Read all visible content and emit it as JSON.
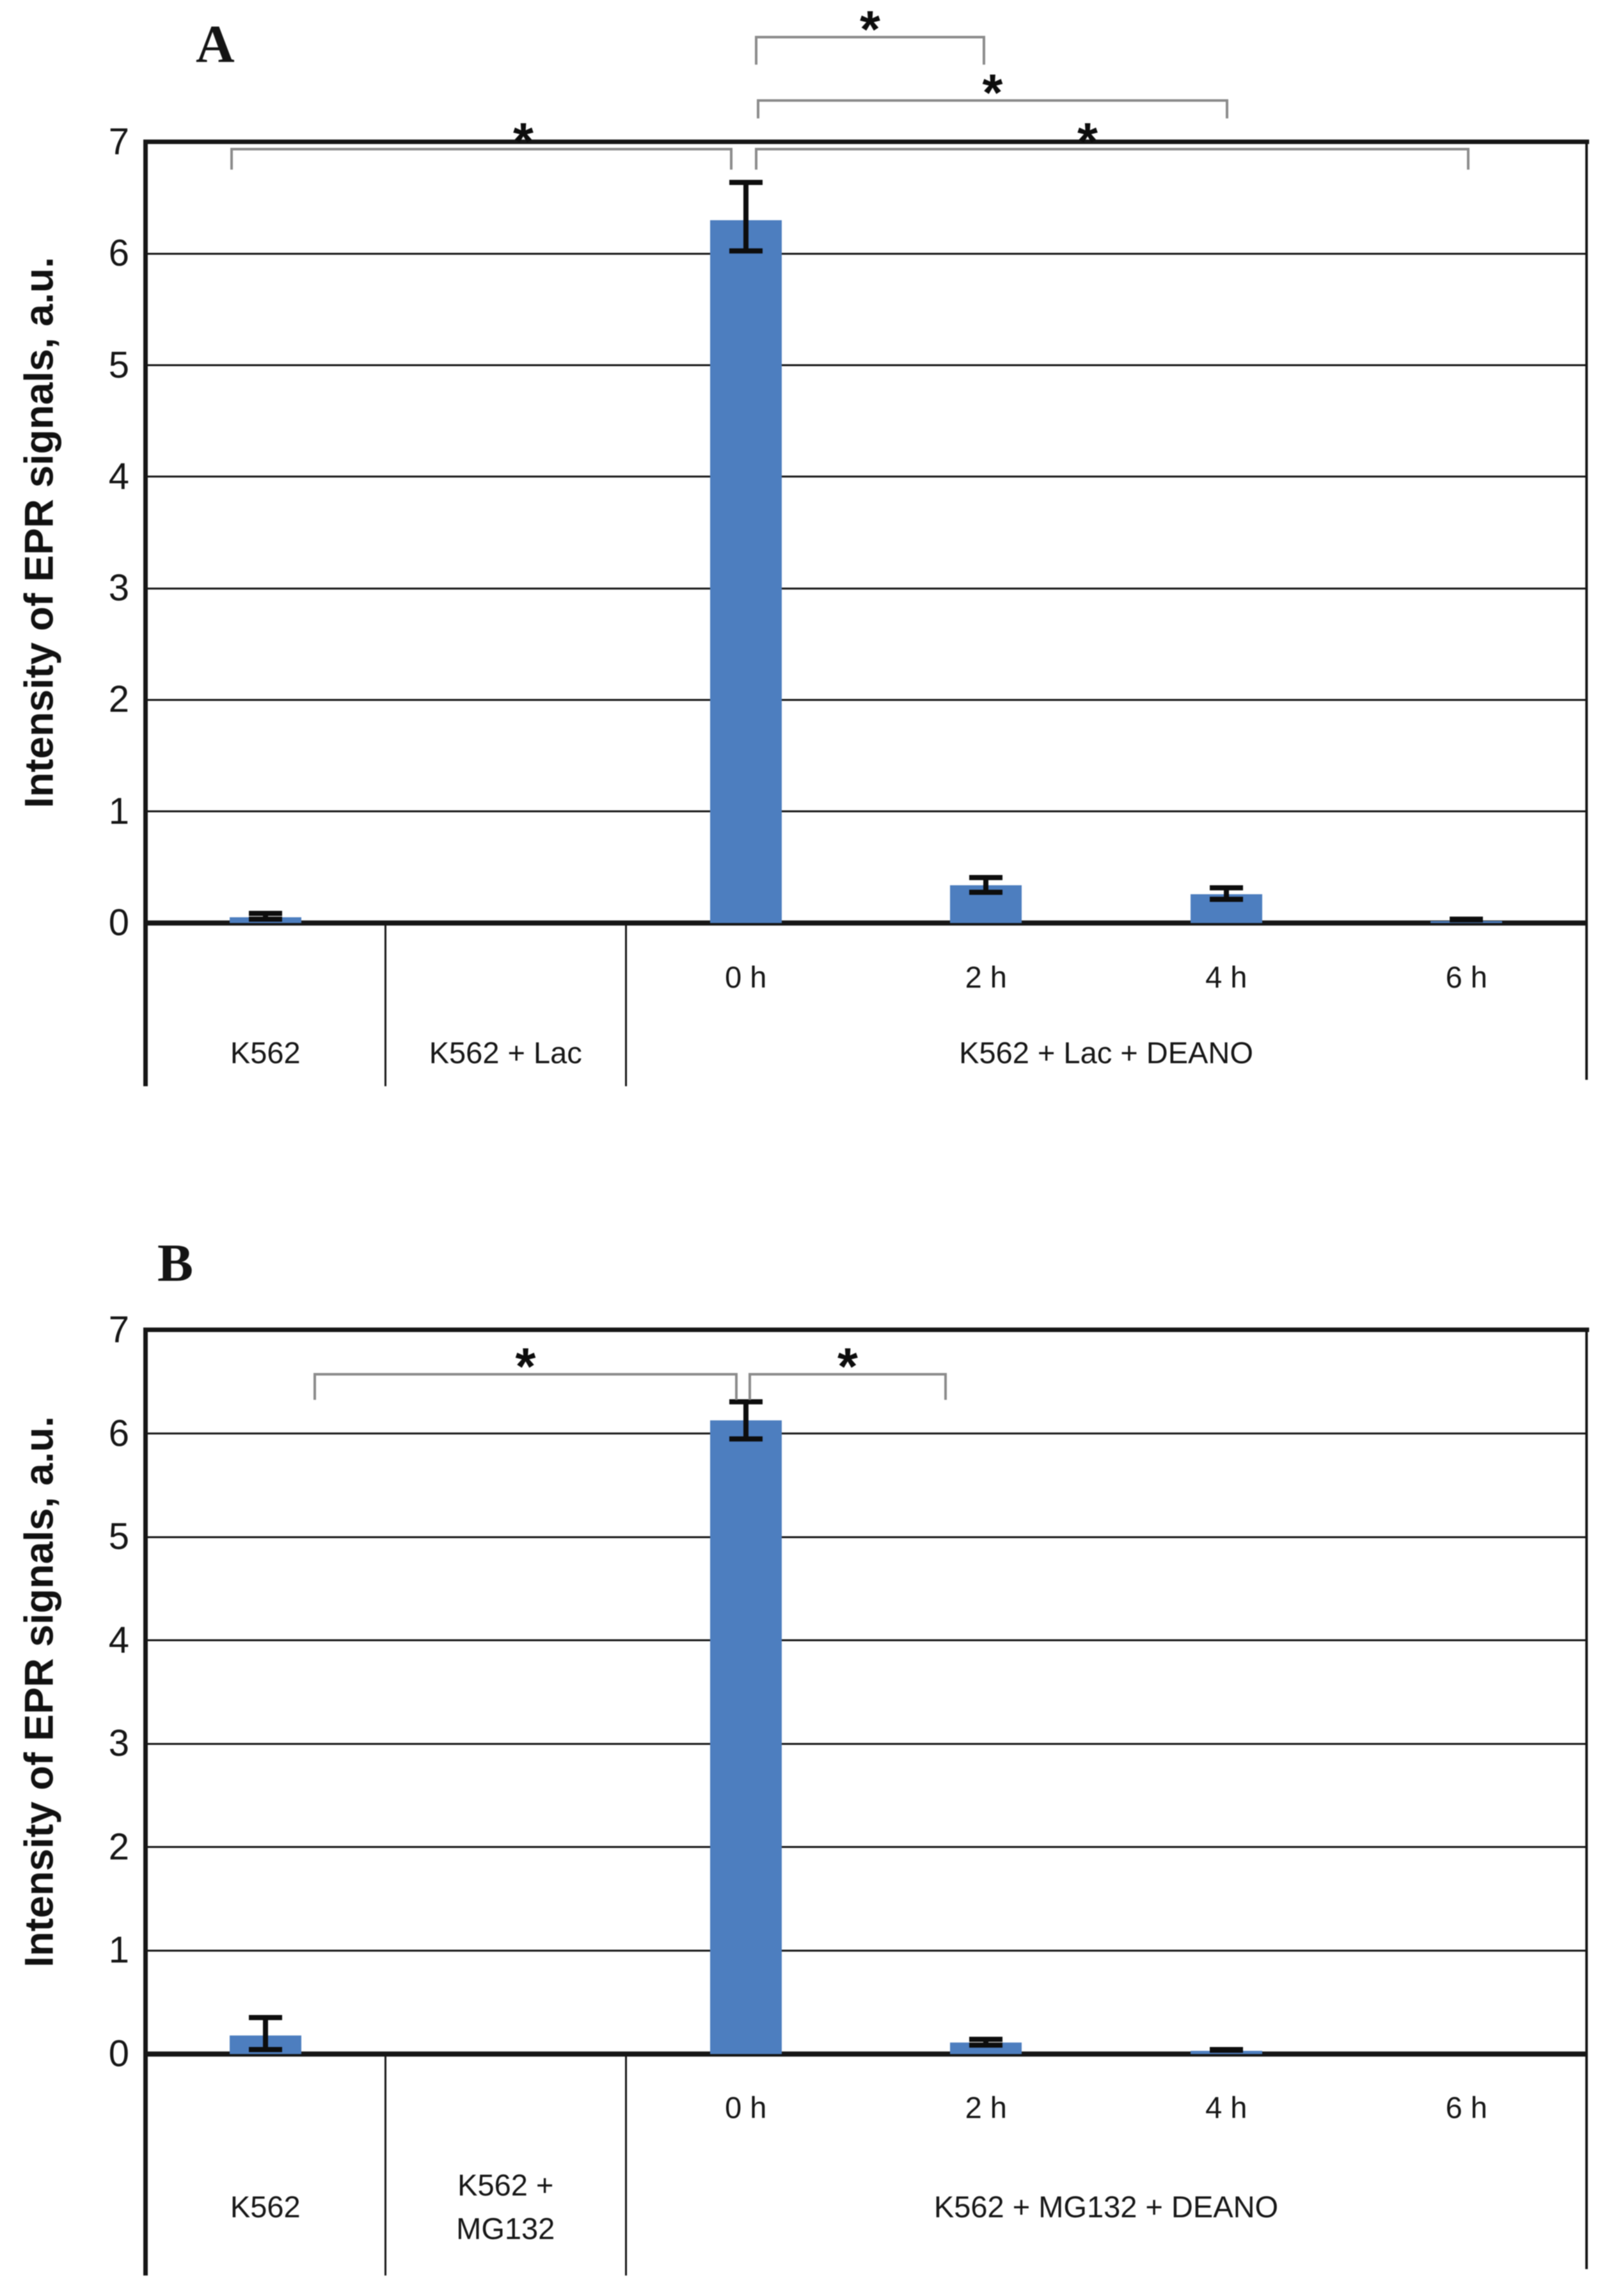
{
  "figure_caption_letters": [
    "A",
    "B"
  ],
  "style": {
    "bar_color": "#4d7ebf",
    "error_bar_color": "#0d0d0d",
    "bracket_color": "#8b8b8b",
    "axis_color": "#161616",
    "background": "#ffffff"
  },
  "chart_data": [
    {
      "id": "A",
      "panel_label": "A",
      "type": "bar",
      "title": "",
      "ylabel": "Intensity of EPR signals, a.u.",
      "xlabel": "",
      "ylim": [
        0,
        7
      ],
      "yticks": [
        0,
        1,
        2,
        3,
        4,
        5,
        6,
        7
      ],
      "grid": "horizontal",
      "legend": "none",
      "categories": [
        "K562",
        "K562 + Lac",
        "0 h",
        "2 h",
        "4 h",
        "6 h"
      ],
      "values": [
        0.05,
        0,
        6.3,
        0.34,
        0.26,
        0.02
      ],
      "errors_plus": [
        0.06,
        null,
        0.36,
        0.09,
        0.08,
        0.03
      ],
      "errors_minus": [
        0.04,
        null,
        0.3,
        0.09,
        0.07,
        0.01
      ],
      "time_labels": [
        "",
        "",
        "0 h",
        "2 h",
        "4 h",
        "6 h"
      ],
      "group_labels": [
        {
          "text": "K562",
          "from": 0,
          "to": 0
        },
        {
          "text": "K562 + Lac",
          "from": 1,
          "to": 1
        },
        {
          "text": "K562 + Lac + DEANO",
          "from": 2,
          "to": 5
        }
      ],
      "significance_brackets": [
        {
          "between": [
            "0 h",
            "2 h"
          ],
          "label": "*"
        },
        {
          "between": [
            "0 h",
            "4 h"
          ],
          "label": "*"
        },
        {
          "between": [
            "K562",
            "0 h"
          ],
          "label": "*"
        },
        {
          "between": [
            "0 h",
            "6 h"
          ],
          "label": "*"
        }
      ]
    },
    {
      "id": "B",
      "panel_label": "B",
      "type": "bar",
      "title": "",
      "ylabel": "Intensity of EPR signals, a.u.",
      "xlabel": "",
      "ylim": [
        0,
        7
      ],
      "yticks": [
        0,
        1,
        2,
        3,
        4,
        5,
        6,
        7
      ],
      "grid": "horizontal",
      "legend": "none",
      "categories": [
        "K562",
        "K562 + MG132",
        "0 h",
        "2 h",
        "4 h",
        "6 h"
      ],
      "values": [
        0.18,
        0,
        6.13,
        0.11,
        0.03,
        0
      ],
      "errors_plus": [
        0.2,
        null,
        0.2,
        0.06,
        0.04,
        null
      ],
      "errors_minus": [
        0.16,
        null,
        0.21,
        0.05,
        0.02,
        null
      ],
      "time_labels": [
        "",
        "",
        "0 h",
        "2 h",
        "4 h",
        "6 h"
      ],
      "group_labels": [
        {
          "text": "K562",
          "from": 0,
          "to": 0
        },
        {
          "text": "K562 +\nMG132",
          "from": 1,
          "to": 1
        },
        {
          "text": "K562 + MG132 + DEANO",
          "from": 2,
          "to": 5
        }
      ],
      "significance_brackets": [
        {
          "between": [
            "K562",
            "0 h"
          ],
          "label": "*"
        },
        {
          "between": [
            "0 h",
            "2 h"
          ],
          "label": "*"
        }
      ]
    }
  ]
}
